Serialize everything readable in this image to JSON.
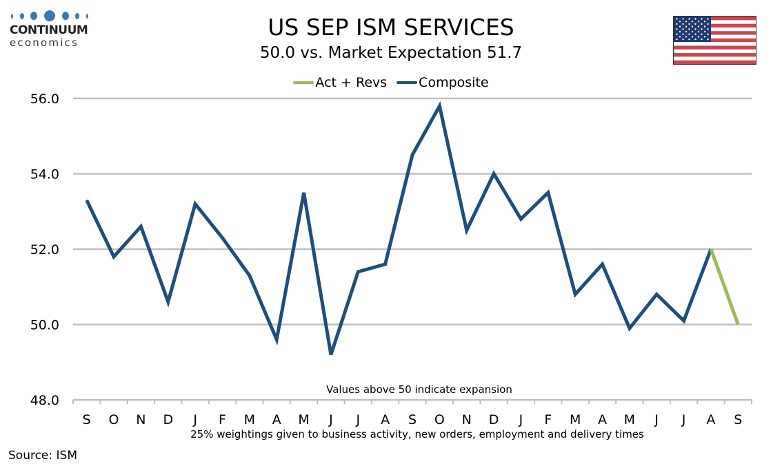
{
  "header": {
    "logo_brand": "CONTINUUM",
    "logo_sub": "economics",
    "title": "US SEP ISM SERVICES",
    "subtitle": "50.0 vs. Market Expectation 51.7",
    "flag_icon": "us-flag-icon"
  },
  "footer": {
    "source": "Source: ISM"
  },
  "colors": {
    "composite": "#1f4e79",
    "act_revs": "#9bbb59",
    "gridline": "#bfbfbf",
    "logo_blue": "#3a78b0"
  },
  "chart_data": {
    "type": "line",
    "title": "US SEP ISM SERVICES",
    "subtitle": "50.0 vs. Market Expectation 51.7",
    "xlabel": "25% weightings given to business activity, new orders, employment and delivery times",
    "ylabel": "",
    "annotation": "Values above 50 indicate expansion",
    "ylim": [
      48.0,
      56.0
    ],
    "yticks": [
      "48.0",
      "50.0",
      "52.0",
      "54.0",
      "56.0"
    ],
    "ytick_values": [
      48,
      50,
      52,
      54,
      56
    ],
    "grid": true,
    "legend_position": "top-center",
    "categories": [
      "S",
      "O",
      "N",
      "D",
      "J",
      "F",
      "M",
      "A",
      "M",
      "J",
      "J",
      "A",
      "S",
      "O",
      "N",
      "D",
      "J",
      "F",
      "M",
      "A",
      "M",
      "J",
      "J",
      "A",
      "S"
    ],
    "series": [
      {
        "name": "Act + Revs",
        "color": "#9bbb59",
        "values": [
          null,
          null,
          null,
          null,
          null,
          null,
          null,
          null,
          null,
          null,
          null,
          null,
          null,
          null,
          null,
          null,
          null,
          null,
          null,
          null,
          null,
          null,
          null,
          52.0,
          50.0
        ]
      },
      {
        "name": "Composite",
        "color": "#1f4e79",
        "values": [
          53.3,
          51.8,
          52.6,
          50.6,
          53.2,
          52.3,
          51.3,
          49.6,
          53.5,
          49.2,
          51.4,
          51.6,
          54.5,
          55.8,
          52.5,
          54.0,
          52.8,
          53.5,
          50.8,
          51.6,
          49.9,
          50.8,
          50.1,
          52.0,
          null
        ]
      }
    ]
  }
}
